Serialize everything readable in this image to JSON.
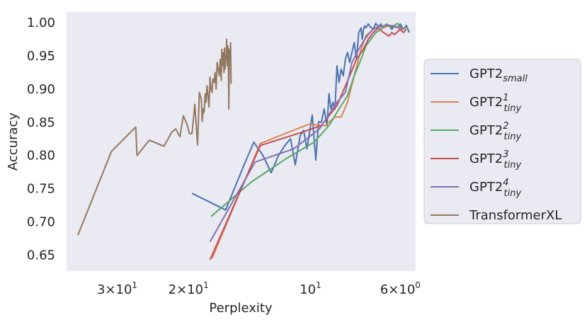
{
  "chart_data": {
    "type": "line",
    "xlabel": "Perplexity",
    "ylabel": "Accuracy",
    "x_scale": "log",
    "x_axis_inverted": true,
    "xlim": [
      40,
      5.5
    ],
    "ylim": [
      0.626,
      1.016
    ],
    "grid": false,
    "background": "#eaeaf2",
    "legend_position": "outside-right",
    "x_ticks": [
      {
        "value": 30,
        "base": "3",
        "exp": "1"
      },
      {
        "value": 20,
        "base": "2",
        "exp": "1"
      },
      {
        "value": 10,
        "base": "",
        "exp": "1"
      },
      {
        "value": 6,
        "base": "6",
        "exp": "0"
      }
    ],
    "y_ticks": [
      "0.65",
      "0.70",
      "0.75",
      "0.80",
      "0.85",
      "0.90",
      "0.95",
      "1.00"
    ],
    "series": [
      {
        "name": "GPT2",
        "sub": "small",
        "sup": "",
        "color": "#4c72b0",
        "x": [
          19.6,
          16.2,
          14.6,
          13.8,
          13.1,
          12.5,
          12.0,
          11.5,
          11.2,
          10.9,
          10.6,
          10.4,
          10.2,
          9.9,
          9.7,
          9.55,
          9.4,
          9.25,
          9.1,
          9.0,
          8.9,
          8.8,
          8.7,
          8.6,
          8.5,
          8.4,
          8.3,
          8.2,
          8.1,
          8.0,
          7.9,
          7.8,
          7.7,
          7.6,
          7.5,
          7.45,
          7.4,
          7.35,
          7.3,
          7.2,
          7.1,
          7.0,
          6.9,
          6.8,
          6.7,
          6.6,
          6.5,
          6.4,
          6.3,
          6.2,
          6.1,
          6.0,
          5.9,
          5.8,
          5.7
        ],
        "y": [
          0.743,
          0.718,
          0.785,
          0.82,
          0.8,
          0.774,
          0.8,
          0.817,
          0.825,
          0.786,
          0.83,
          0.838,
          0.81,
          0.861,
          0.793,
          0.851,
          0.85,
          0.87,
          0.845,
          0.893,
          0.87,
          0.88,
          0.87,
          0.935,
          0.91,
          0.93,
          0.92,
          0.945,
          0.955,
          0.94,
          0.955,
          0.97,
          0.945,
          0.985,
          0.992,
          0.975,
          0.99,
          0.995,
          0.992,
          0.998,
          0.993,
          0.99,
          0.999,
          0.994,
          0.998,
          0.992,
          0.997,
          0.996,
          0.99,
          0.995,
          0.992,
          0.998,
          0.99,
          0.996,
          0.985
        ]
      },
      {
        "name": "GPT2",
        "sub": "tiny",
        "sup": "1",
        "color": "#dd8452",
        "x": [
          17.5,
          13.3,
          10.1,
          9.2,
          8.7,
          8.4,
          8.1,
          7.8,
          7.5,
          7.3,
          7.0,
          6.8,
          6.6,
          6.3,
          6.0,
          5.8
        ],
        "y": [
          0.645,
          0.818,
          0.847,
          0.845,
          0.858,
          0.858,
          0.88,
          0.92,
          0.96,
          0.98,
          0.99,
          0.994,
          0.993,
          0.996,
          0.99,
          0.992
        ]
      },
      {
        "name": "GPT2",
        "sub": "tiny",
        "sup": "2",
        "color": "#55a868",
        "x": [
          17.6,
          14.0,
          11.5,
          9.8,
          9.0,
          8.5,
          8.1,
          7.8,
          7.5,
          7.3,
          7.1,
          6.9,
          6.7,
          6.5,
          6.3,
          6.1,
          5.9,
          5.8
        ],
        "y": [
          0.708,
          0.76,
          0.795,
          0.82,
          0.845,
          0.87,
          0.89,
          0.92,
          0.945,
          0.965,
          0.975,
          0.985,
          0.99,
          0.998,
          0.993,
          0.999,
          0.99,
          0.995
        ]
      },
      {
        "name": "GPT2",
        "sub": "tiny",
        "sup": "3",
        "color": "#c44e52",
        "x": [
          17.7,
          13.3,
          10.5,
          9.4,
          8.6,
          8.0,
          7.7,
          7.4,
          7.2,
          7.0,
          6.8,
          6.6,
          6.4,
          6.3,
          6.2,
          6.0,
          5.9,
          5.8
        ],
        "y": [
          0.643,
          0.815,
          0.835,
          0.845,
          0.875,
          0.92,
          0.945,
          0.96,
          0.975,
          0.985,
          0.992,
          0.985,
          0.98,
          0.985,
          0.982,
          0.99,
          0.985,
          0.99
        ]
      },
      {
        "name": "GPT2",
        "sub": "tiny",
        "sup": "4",
        "color": "#8172b3",
        "x": [
          17.7,
          13.7,
          11.0,
          9.5,
          8.6,
          8.2,
          7.9,
          7.6,
          7.4,
          7.2,
          7.0,
          6.8,
          6.6,
          6.4,
          6.2,
          6.0,
          5.9
        ],
        "y": [
          0.67,
          0.79,
          0.81,
          0.84,
          0.88,
          0.895,
          0.94,
          0.96,
          0.972,
          0.982,
          0.99,
          0.994,
          0.995,
          0.996,
          0.994,
          0.993,
          0.99
        ],
        "_": ""
      },
      {
        "name": "TransformerXL",
        "sub": "",
        "sup": "",
        "color": "#937860",
        "x": [
          37.5,
          31.0,
          27.0,
          26.8,
          25.0,
          23.0,
          22.0,
          21.5,
          21.0,
          20.6,
          20.2,
          19.9,
          19.6,
          19.3,
          19.0,
          18.8,
          18.6,
          18.5,
          18.4,
          18.3,
          18.2,
          18.1,
          18.0,
          17.9,
          17.8,
          17.7,
          17.6,
          17.5,
          17.4,
          17.3,
          17.2,
          17.1,
          17.0,
          16.9,
          16.8,
          16.7,
          16.6,
          16.55,
          16.5,
          16.45,
          16.4,
          16.35,
          16.3,
          16.25,
          16.2,
          16.15,
          16.1,
          16.05,
          16.0,
          15.95,
          15.9,
          15.85,
          15.8,
          15.75,
          15.7
        ],
        "y": [
          0.68,
          0.806,
          0.843,
          0.8,
          0.823,
          0.814,
          0.835,
          0.84,
          0.828,
          0.86,
          0.848,
          0.833,
          0.833,
          0.877,
          0.816,
          0.895,
          0.885,
          0.851,
          0.87,
          0.865,
          0.893,
          0.88,
          0.905,
          0.89,
          0.873,
          0.918,
          0.9,
          0.895,
          0.915,
          0.91,
          0.925,
          0.9,
          0.94,
          0.93,
          0.92,
          0.945,
          0.913,
          0.96,
          0.935,
          0.94,
          0.955,
          0.925,
          0.962,
          0.93,
          0.95,
          0.945,
          0.975,
          0.935,
          0.965,
          0.95,
          0.87,
          0.96,
          0.945,
          0.97,
          0.908
        ]
      }
    ]
  }
}
